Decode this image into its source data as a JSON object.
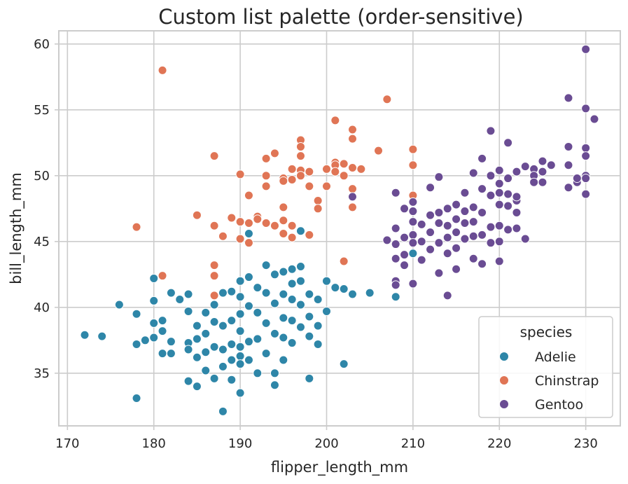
{
  "chart_data": {
    "type": "scatter",
    "title": "Custom list palette (order-sensitive)",
    "xlabel": "flipper_length_mm",
    "ylabel": "bill_length_mm",
    "xlim": [
      169,
      234
    ],
    "ylim": [
      31,
      61
    ],
    "xticks": [
      170,
      180,
      190,
      200,
      210,
      220,
      230
    ],
    "yticks": [
      35,
      40,
      45,
      50,
      55,
      60
    ],
    "grid": true,
    "legend": {
      "title": "species",
      "position": "lower-right"
    },
    "series": [
      {
        "name": "Adelie",
        "color": "#2e86a8",
        "points": [
          [
            172,
            37.9
          ],
          [
            174,
            37.8
          ],
          [
            176,
            40.2
          ],
          [
            178,
            39.5
          ],
          [
            178,
            37.2
          ],
          [
            178,
            33.1
          ],
          [
            179,
            37.5
          ],
          [
            180,
            42.2
          ],
          [
            180,
            40.5
          ],
          [
            180,
            38.8
          ],
          [
            180,
            37.7
          ],
          [
            181,
            39.0
          ],
          [
            181,
            38.2
          ],
          [
            181,
            36.5
          ],
          [
            182,
            41.1
          ],
          [
            182,
            37.4
          ],
          [
            182,
            36.5
          ],
          [
            183,
            40.6
          ],
          [
            184,
            41.0
          ],
          [
            184,
            39.7
          ],
          [
            184,
            37.3
          ],
          [
            184,
            36.8
          ],
          [
            184,
            34.4
          ],
          [
            185,
            38.6
          ],
          [
            185,
            37.6
          ],
          [
            185,
            36.2
          ],
          [
            185,
            34.0
          ],
          [
            186,
            39.6
          ],
          [
            186,
            38.0
          ],
          [
            186,
            36.6
          ],
          [
            186,
            35.2
          ],
          [
            187,
            40.2
          ],
          [
            187,
            38.9
          ],
          [
            187,
            37.0
          ],
          [
            187,
            34.6
          ],
          [
            188,
            41.1
          ],
          [
            188,
            38.6
          ],
          [
            188,
            36.8
          ],
          [
            188,
            35.5
          ],
          [
            188,
            32.1
          ],
          [
            189,
            41.2
          ],
          [
            189,
            39.0
          ],
          [
            189,
            37.2
          ],
          [
            189,
            36.0
          ],
          [
            189,
            34.5
          ],
          [
            190,
            42.0
          ],
          [
            190,
            40.8
          ],
          [
            190,
            39.5
          ],
          [
            190,
            38.2
          ],
          [
            190,
            37.0
          ],
          [
            190,
            36.3
          ],
          [
            190,
            35.7
          ],
          [
            190,
            33.5
          ],
          [
            191,
            42.3
          ],
          [
            191,
            45.6
          ],
          [
            191,
            40.1
          ],
          [
            191,
            37.4
          ],
          [
            191,
            36.0
          ],
          [
            192,
            41.5
          ],
          [
            192,
            39.6
          ],
          [
            192,
            37.6
          ],
          [
            192,
            35.0
          ],
          [
            193,
            43.2
          ],
          [
            193,
            41.1
          ],
          [
            193,
            38.8
          ],
          [
            193,
            36.5
          ],
          [
            194,
            42.5
          ],
          [
            194,
            40.3
          ],
          [
            194,
            38.0
          ],
          [
            194,
            35.0
          ],
          [
            194,
            34.1
          ],
          [
            195,
            42.7
          ],
          [
            195,
            41.0
          ],
          [
            195,
            39.2
          ],
          [
            195,
            37.7
          ],
          [
            195,
            36.0
          ],
          [
            196,
            42.9
          ],
          [
            196,
            41.8
          ],
          [
            196,
            40.6
          ],
          [
            196,
            39.0
          ],
          [
            196,
            37.3
          ],
          [
            197,
            45.8
          ],
          [
            197,
            43.1
          ],
          [
            197,
            42.0
          ],
          [
            197,
            40.2
          ],
          [
            197,
            38.5
          ],
          [
            198,
            41.0
          ],
          [
            198,
            39.3
          ],
          [
            198,
            37.8
          ],
          [
            198,
            34.6
          ],
          [
            199,
            40.6
          ],
          [
            199,
            38.6
          ],
          [
            199,
            37.2
          ],
          [
            200,
            42.0
          ],
          [
            200,
            39.7
          ],
          [
            201,
            41.5
          ],
          [
            202,
            41.4
          ],
          [
            202,
            35.7
          ],
          [
            203,
            41.0
          ],
          [
            205,
            41.1
          ],
          [
            208,
            40.8
          ],
          [
            210,
            44.1
          ]
        ]
      },
      {
        "name": "Chinstrap",
        "color": "#e07555",
        "points": [
          [
            178,
            46.1
          ],
          [
            181,
            58.0
          ],
          [
            181,
            42.4
          ],
          [
            185,
            47.0
          ],
          [
            187,
            51.5
          ],
          [
            187,
            46.2
          ],
          [
            187,
            43.2
          ],
          [
            187,
            42.4
          ],
          [
            187,
            40.9
          ],
          [
            188,
            45.4
          ],
          [
            189,
            46.8
          ],
          [
            190,
            50.1
          ],
          [
            190,
            46.5
          ],
          [
            190,
            45.2
          ],
          [
            191,
            46.4
          ],
          [
            191,
            48.5
          ],
          [
            191,
            44.9
          ],
          [
            192,
            46.9
          ],
          [
            192,
            46.7
          ],
          [
            193,
            50.0
          ],
          [
            193,
            51.3
          ],
          [
            193,
            49.2
          ],
          [
            193,
            46.4
          ],
          [
            194,
            51.7
          ],
          [
            194,
            46.2
          ],
          [
            195,
            49.8
          ],
          [
            195,
            49.6
          ],
          [
            195,
            45.6
          ],
          [
            195,
            46.6
          ],
          [
            195,
            47.6
          ],
          [
            196,
            50.5
          ],
          [
            196,
            49.7
          ],
          [
            196,
            46.2
          ],
          [
            196,
            45.3
          ],
          [
            197,
            52.7
          ],
          [
            197,
            52.2
          ],
          [
            197,
            51.5
          ],
          [
            197,
            50.4
          ],
          [
            197,
            50.0
          ],
          [
            198,
            50.3
          ],
          [
            198,
            49.2
          ],
          [
            198,
            45.5
          ],
          [
            199,
            48.1
          ],
          [
            199,
            47.5
          ],
          [
            200,
            50.5
          ],
          [
            200,
            49.2
          ],
          [
            201,
            54.2
          ],
          [
            201,
            51.0
          ],
          [
            201,
            50.8
          ],
          [
            201,
            50.3
          ],
          [
            202,
            50.0
          ],
          [
            202,
            50.9
          ],
          [
            202,
            43.5
          ],
          [
            203,
            50.6
          ],
          [
            203,
            49.0
          ],
          [
            203,
            47.6
          ],
          [
            203,
            53.5
          ],
          [
            203,
            52.8
          ],
          [
            204,
            50.5
          ],
          [
            206,
            51.9
          ],
          [
            207,
            55.8
          ],
          [
            210,
            52.0
          ],
          [
            210,
            50.8
          ],
          [
            210,
            48.5
          ]
        ]
      },
      {
        "name": "Gentoo",
        "color": "#6a4c93",
        "points": [
          [
            203,
            48.4
          ],
          [
            208,
            48.7
          ],
          [
            208,
            46.0
          ],
          [
            208,
            44.8
          ],
          [
            208,
            43.7
          ],
          [
            208,
            42.0
          ],
          [
            208,
            41.7
          ],
          [
            207,
            45.1
          ],
          [
            209,
            47.5
          ],
          [
            209,
            45.3
          ],
          [
            209,
            44.0
          ],
          [
            209,
            43.2
          ],
          [
            210,
            48.0
          ],
          [
            210,
            46.5
          ],
          [
            210,
            45.5
          ],
          [
            210,
            44.9
          ],
          [
            210,
            41.8
          ],
          [
            210,
            47.3
          ],
          [
            211,
            46.3
          ],
          [
            211,
            45.0
          ],
          [
            211,
            43.6
          ],
          [
            212,
            49.1
          ],
          [
            212,
            47.0
          ],
          [
            212,
            45.7
          ],
          [
            212,
            44.4
          ],
          [
            213,
            49.9
          ],
          [
            213,
            47.2
          ],
          [
            213,
            46.4
          ],
          [
            213,
            44.9
          ],
          [
            213,
            42.6
          ],
          [
            214,
            47.5
          ],
          [
            214,
            46.2
          ],
          [
            214,
            45.3
          ],
          [
            214,
            44.1
          ],
          [
            214,
            40.9
          ],
          [
            215,
            47.8
          ],
          [
            215,
            46.7
          ],
          [
            215,
            45.7
          ],
          [
            215,
            44.5
          ],
          [
            215,
            42.9
          ],
          [
            216,
            48.7
          ],
          [
            216,
            47.3
          ],
          [
            216,
            46.4
          ],
          [
            216,
            45.2
          ],
          [
            217,
            50.2
          ],
          [
            217,
            47.6
          ],
          [
            217,
            46.5
          ],
          [
            217,
            45.4
          ],
          [
            217,
            43.7
          ],
          [
            218,
            51.3
          ],
          [
            218,
            49.0
          ],
          [
            218,
            47.2
          ],
          [
            218,
            45.5
          ],
          [
            218,
            43.3
          ],
          [
            219,
            53.4
          ],
          [
            219,
            50.0
          ],
          [
            219,
            48.5
          ],
          [
            219,
            46.1
          ],
          [
            219,
            44.9
          ],
          [
            220,
            50.4
          ],
          [
            220,
            49.4
          ],
          [
            220,
            48.7
          ],
          [
            220,
            47.8
          ],
          [
            220,
            46.2
          ],
          [
            220,
            45.0
          ],
          [
            220,
            43.5
          ],
          [
            221,
            52.5
          ],
          [
            221,
            49.8
          ],
          [
            221,
            48.6
          ],
          [
            221,
            47.7
          ],
          [
            221,
            45.9
          ],
          [
            222,
            50.3
          ],
          [
            222,
            48.1
          ],
          [
            222,
            47.2
          ],
          [
            222,
            46.0
          ],
          [
            222,
            48.4
          ],
          [
            223,
            50.7
          ],
          [
            223,
            45.2
          ],
          [
            224,
            50.5
          ],
          [
            224,
            50.0
          ],
          [
            224,
            49.5
          ],
          [
            225,
            51.1
          ],
          [
            225,
            50.3
          ],
          [
            225,
            49.5
          ],
          [
            226,
            50.8
          ],
          [
            228,
            55.9
          ],
          [
            228,
            52.2
          ],
          [
            228,
            50.8
          ],
          [
            228,
            49.1
          ],
          [
            229,
            49.5
          ],
          [
            229,
            49.8
          ],
          [
            230,
            59.6
          ],
          [
            230,
            55.1
          ],
          [
            230,
            52.1
          ],
          [
            230,
            51.5
          ],
          [
            230,
            50.0
          ],
          [
            230,
            49.8
          ],
          [
            230,
            48.6
          ],
          [
            231,
            54.3
          ]
        ]
      }
    ]
  }
}
